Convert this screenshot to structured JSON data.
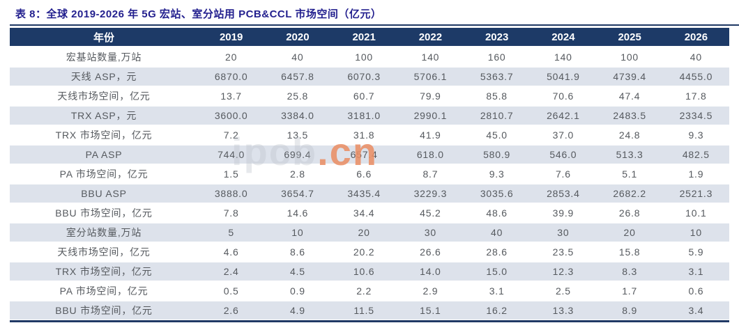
{
  "title": "表 8：全球 2019-2026 年 5G 宏站、室分站用 PCB&CCL 市场空间（亿元）",
  "colors": {
    "title_text": "#221f8e",
    "header_bg": "#1d3a67",
    "header_text": "#ffffff",
    "stripe_bg": "#dde2eb",
    "body_text": "#55595e",
    "rule": "#1f3864",
    "watermark_orange": "#e98e65"
  },
  "watermark": {
    "gray": "ipcb",
    "orange": ".cn"
  },
  "table": {
    "header": [
      "年份",
      "2019",
      "2020",
      "2021",
      "2022",
      "2023",
      "2024",
      "2025",
      "2026"
    ],
    "rows": [
      {
        "label": "宏基站数量,万站",
        "values": [
          "20",
          "40",
          "100",
          "140",
          "160",
          "140",
          "100",
          "40"
        ]
      },
      {
        "label": "天线 ASP，元",
        "values": [
          "6870.0",
          "6457.8",
          "6070.3",
          "5706.1",
          "5363.7",
          "5041.9",
          "4739.4",
          "4455.0"
        ]
      },
      {
        "label": "天线市场空间，亿元",
        "values": [
          "13.7",
          "25.8",
          "60.7",
          "79.9",
          "85.8",
          "70.6",
          "47.4",
          "17.8"
        ]
      },
      {
        "label": "TRX ASP，元",
        "values": [
          "3600.0",
          "3384.0",
          "3181.0",
          "2990.1",
          "2810.7",
          "2642.1",
          "2483.5",
          "2334.5"
        ]
      },
      {
        "label": "TRX 市场空间，亿元",
        "values": [
          "7.2",
          "13.5",
          "31.8",
          "41.9",
          "45.0",
          "37.0",
          "24.8",
          "9.3"
        ]
      },
      {
        "label": "PA ASP",
        "values": [
          "744.0",
          "699.4",
          "657.4",
          "618.0",
          "580.9",
          "546.0",
          "513.3",
          "482.5"
        ]
      },
      {
        "label": "PA 市场空间，亿元",
        "values": [
          "1.5",
          "2.8",
          "6.6",
          "8.7",
          "9.3",
          "7.6",
          "5.1",
          "1.9"
        ]
      },
      {
        "label": "BBU ASP",
        "values": [
          "3888.0",
          "3654.7",
          "3435.4",
          "3229.3",
          "3035.6",
          "2853.4",
          "2682.2",
          "2521.3"
        ]
      },
      {
        "label": "BBU 市场空间，亿元",
        "values": [
          "7.8",
          "14.6",
          "34.4",
          "45.2",
          "48.6",
          "39.9",
          "26.8",
          "10.1"
        ]
      },
      {
        "label": "室分站数量,万站",
        "values": [
          "5",
          "10",
          "20",
          "30",
          "40",
          "30",
          "20",
          "10"
        ]
      },
      {
        "label": "天线市场空间，亿元",
        "values": [
          "4.6",
          "8.6",
          "20.2",
          "26.6",
          "28.6",
          "23.5",
          "15.8",
          "5.9"
        ]
      },
      {
        "label": "TRX 市场空间，亿元",
        "values": [
          "2.4",
          "4.5",
          "10.6",
          "14.0",
          "15.0",
          "12.3",
          "8.3",
          "3.1"
        ]
      },
      {
        "label": "PA 市场空间，亿元",
        "values": [
          "0.5",
          "0.9",
          "2.2",
          "2.9",
          "3.1",
          "2.5",
          "1.7",
          "0.6"
        ]
      },
      {
        "label": "BBU 市场空间，亿元",
        "values": [
          "2.6",
          "4.9",
          "11.5",
          "15.1",
          "16.2",
          "13.3",
          "8.9",
          "3.4"
        ]
      }
    ]
  }
}
